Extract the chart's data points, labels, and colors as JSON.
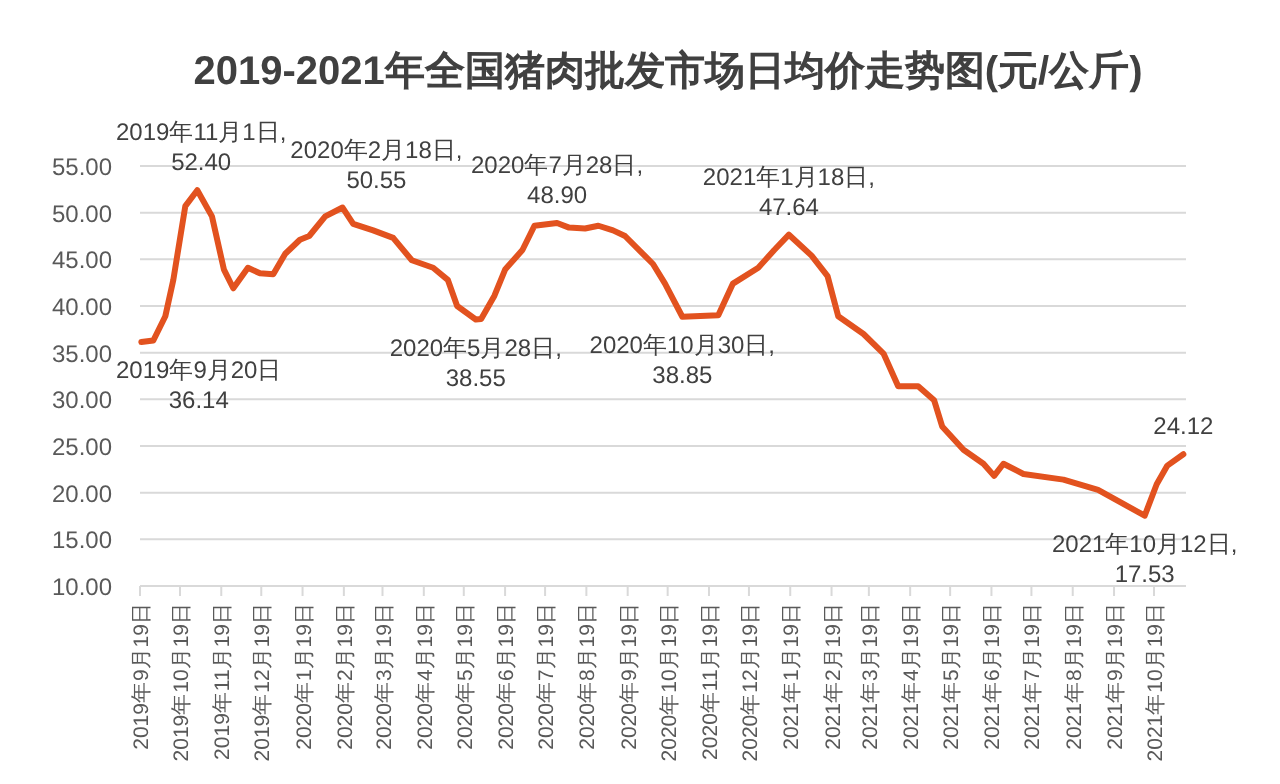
{
  "chart_data": {
    "type": "line",
    "title": "2019-2021年全国猪肉批发市场日均价走势图(元/公斤)",
    "series": [
      {
        "color": "#e2521f",
        "x": [
          "2019-09-20",
          "2019-09-29",
          "2019-10-08",
          "2019-10-14",
          "2019-10-23",
          "2019-11-01",
          "2019-11-12",
          "2019-11-21",
          "2019-11-28",
          "2019-12-09",
          "2019-12-18",
          "2019-12-28",
          "2020-01-06",
          "2020-01-17",
          "2020-01-24",
          "2020-02-05",
          "2020-02-18",
          "2020-02-26",
          "2020-03-12",
          "2020-03-27",
          "2020-04-10",
          "2020-04-26",
          "2020-05-07",
          "2020-05-14",
          "2020-05-28",
          "2020-06-01",
          "2020-06-11",
          "2020-06-19",
          "2020-07-02",
          "2020-07-11",
          "2020-07-28",
          "2020-08-06",
          "2020-08-18",
          "2020-08-28",
          "2020-09-08",
          "2020-09-17",
          "2020-10-08",
          "2020-10-17",
          "2020-10-30",
          "2020-11-26",
          "2020-12-07",
          "2020-12-26",
          "2021-01-07",
          "2021-01-18",
          "2021-02-04",
          "2021-02-16",
          "2021-02-24",
          "2021-03-15",
          "2021-03-30",
          "2021-04-10",
          "2021-04-25",
          "2021-05-07",
          "2021-05-13",
          "2021-05-29",
          "2021-06-13",
          "2021-06-21",
          "2021-06-28",
          "2021-07-13",
          "2021-08-12",
          "2021-09-07",
          "2021-09-26",
          "2021-10-12",
          "2021-10-21",
          "2021-10-29",
          "2021-11-10"
        ],
        "values": [
          36.14,
          36.3,
          38.9,
          42.8,
          50.7,
          52.4,
          49.6,
          43.9,
          41.9,
          44.1,
          43.5,
          43.4,
          45.6,
          47.1,
          47.5,
          49.6,
          50.55,
          48.8,
          48.1,
          47.3,
          44.9,
          44.1,
          42.8,
          40.0,
          38.55,
          38.6,
          41.1,
          43.9,
          46.0,
          48.6,
          48.9,
          48.4,
          48.3,
          48.6,
          48.1,
          47.5,
          44.5,
          42.4,
          38.85,
          39.0,
          42.4,
          44.1,
          46.0,
          47.64,
          45.4,
          43.2,
          38.9,
          37.0,
          34.9,
          31.4,
          31.4,
          29.9,
          27.1,
          24.6,
          23.1,
          21.8,
          23.1,
          22.0,
          21.4,
          20.3,
          18.8,
          17.53,
          20.9,
          22.9,
          24.12
        ]
      }
    ],
    "xlim": [
      "2019-09-19",
      "2021-11-12"
    ],
    "xticks": [
      {
        "value": "2019-09-19",
        "label": "2019年9月19日"
      },
      {
        "value": "2019-10-19",
        "label": "2019年10月19日"
      },
      {
        "value": "2019-11-19",
        "label": "2019年11月19日"
      },
      {
        "value": "2019-12-19",
        "label": "2019年12月19日"
      },
      {
        "value": "2020-01-19",
        "label": "2020年1月19日"
      },
      {
        "value": "2020-02-19",
        "label": "2020年2月19日"
      },
      {
        "value": "2020-03-19",
        "label": "2020年3月19日"
      },
      {
        "value": "2020-04-19",
        "label": "2020年4月19日"
      },
      {
        "value": "2020-05-19",
        "label": "2020年5月19日"
      },
      {
        "value": "2020-06-19",
        "label": "2020年6月19日"
      },
      {
        "value": "2020-07-19",
        "label": "2020年7月19日"
      },
      {
        "value": "2020-08-19",
        "label": "2020年8月19日"
      },
      {
        "value": "2020-09-19",
        "label": "2020年9月19日"
      },
      {
        "value": "2020-10-19",
        "label": "2020年10月19日"
      },
      {
        "value": "2020-11-19",
        "label": "2020年11月19日"
      },
      {
        "value": "2020-12-19",
        "label": "2020年12月19日"
      },
      {
        "value": "2021-01-19",
        "label": "2021年1月19日"
      },
      {
        "value": "2021-02-19",
        "label": "2021年2月19日"
      },
      {
        "value": "2021-03-19",
        "label": "2021年3月19日"
      },
      {
        "value": "2021-04-19",
        "label": "2021年4月19日"
      },
      {
        "value": "2021-05-19",
        "label": "2021年5月19日"
      },
      {
        "value": "2021-06-19",
        "label": "2021年6月19日"
      },
      {
        "value": "2021-07-19",
        "label": "2021年7月19日"
      },
      {
        "value": "2021-08-19",
        "label": "2021年8月19日"
      },
      {
        "value": "2021-09-19",
        "label": "2021年9月19日"
      },
      {
        "value": "2021-10-19",
        "label": "2021年10月19日"
      }
    ],
    "ylim": [
      10,
      55
    ],
    "yticks": [
      {
        "value": 10,
        "label": "10.00"
      },
      {
        "value": 15,
        "label": "15.00"
      },
      {
        "value": 20,
        "label": "20.00"
      },
      {
        "value": 25,
        "label": "25.00"
      },
      {
        "value": 30,
        "label": "30.00"
      },
      {
        "value": 35,
        "label": "35.00"
      },
      {
        "value": 40,
        "label": "40.00"
      },
      {
        "value": 45,
        "label": "45.00"
      },
      {
        "value": 50,
        "label": "50.00"
      },
      {
        "value": 55,
        "label": "55.00"
      }
    ],
    "grid": "y",
    "marker": "none",
    "line_style": "solid",
    "annotations": [
      {
        "text": "2019年9月20日\n36.14",
        "x": "2019-09-20",
        "y": 36.14
      },
      {
        "text": "2019年11月1日,\n52.40",
        "x": "2019-11-01",
        "y": 52.4
      },
      {
        "text": "2020年2月18日,\n50.55",
        "x": "2020-02-18",
        "y": 50.55
      },
      {
        "text": "2020年5月28日,\n38.55",
        "x": "2020-05-28",
        "y": 38.55
      },
      {
        "text": "2020年7月28日,\n48.90",
        "x": "2020-07-28",
        "y": 48.9
      },
      {
        "text": "2020年10月30日,\n38.85",
        "x": "2020-10-30",
        "y": 38.85
      },
      {
        "text": "2021年1月18日,\n47.64",
        "x": "2021-01-18",
        "y": 47.64
      },
      {
        "text": "2021年10月12日,\n17.53",
        "x": "2021-10-12",
        "y": 17.53
      },
      {
        "text": "24.12",
        "x": "2021-11-10",
        "y": 24.12
      }
    ]
  }
}
